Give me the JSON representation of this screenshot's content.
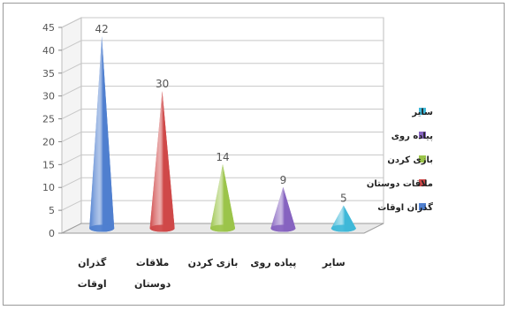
{
  "chart_data": {
    "type": "bar",
    "shape": "cone-3d",
    "categories": [
      [
        "گذران",
        "اوقات"
      ],
      [
        "ملاقات",
        "دوستان"
      ],
      [
        "بازی کردن"
      ],
      [
        "پیاده روی"
      ],
      [
        "سایر"
      ]
    ],
    "values": [
      42,
      30,
      14,
      9,
      5
    ],
    "data_labels": [
      "42",
      "30",
      "14",
      "9",
      "5"
    ],
    "colors": [
      "#4f7fcf",
      "#cf4848",
      "#9bc44a",
      "#8663c0",
      "#3fb8d8"
    ],
    "ylim": [
      0,
      45
    ],
    "yticks": [
      0,
      5,
      10,
      15,
      20,
      25,
      30,
      35,
      40,
      45
    ],
    "grid": true,
    "legend_position": "right",
    "legend": [
      {
        "label": "سایر",
        "color": "#3fb8d8"
      },
      {
        "label": "پیاده روی",
        "color": "#8663c0"
      },
      {
        "label": "بازی کردن",
        "color": "#9bc44a"
      },
      {
        "label": "ملاقات دوستان",
        "color": "#cf4848"
      },
      {
        "label": "گذران اوقات",
        "color": "#4f7fcf"
      }
    ]
  }
}
